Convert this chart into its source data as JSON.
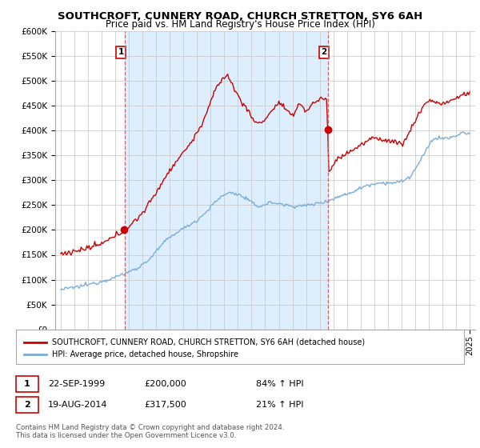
{
  "title": "SOUTHCROFT, CUNNERY ROAD, CHURCH STRETTON, SY6 6AH",
  "subtitle": "Price paid vs. HM Land Registry's House Price Index (HPI)",
  "sale1_date": "22-SEP-1999",
  "sale1_price": 200000,
  "sale1_hpi": "84% ↑ HPI",
  "sale2_date": "19-AUG-2014",
  "sale2_price": 317500,
  "sale2_hpi": "21% ↑ HPI",
  "legend_red": "SOUTHCROFT, CUNNERY ROAD, CHURCH STRETTON, SY6 6AH (detached house)",
  "legend_blue": "HPI: Average price, detached house, Shropshire",
  "footer": "Contains HM Land Registry data © Crown copyright and database right 2024.\nThis data is licensed under the Open Government Licence v3.0.",
  "red_color": "#cc0000",
  "blue_color": "#7aaddb",
  "shade_color": "#ddeeff",
  "dashed_color": "#cc6666",
  "ylim": [
    0,
    600000
  ],
  "yticks": [
    0,
    50000,
    100000,
    150000,
    200000,
    250000,
    300000,
    350000,
    400000,
    450000,
    500000,
    550000,
    600000
  ],
  "background": "#ffffff",
  "grid_color": "#cccccc",
  "sale1_x": 1999.708,
  "sale2_x": 2014.625
}
